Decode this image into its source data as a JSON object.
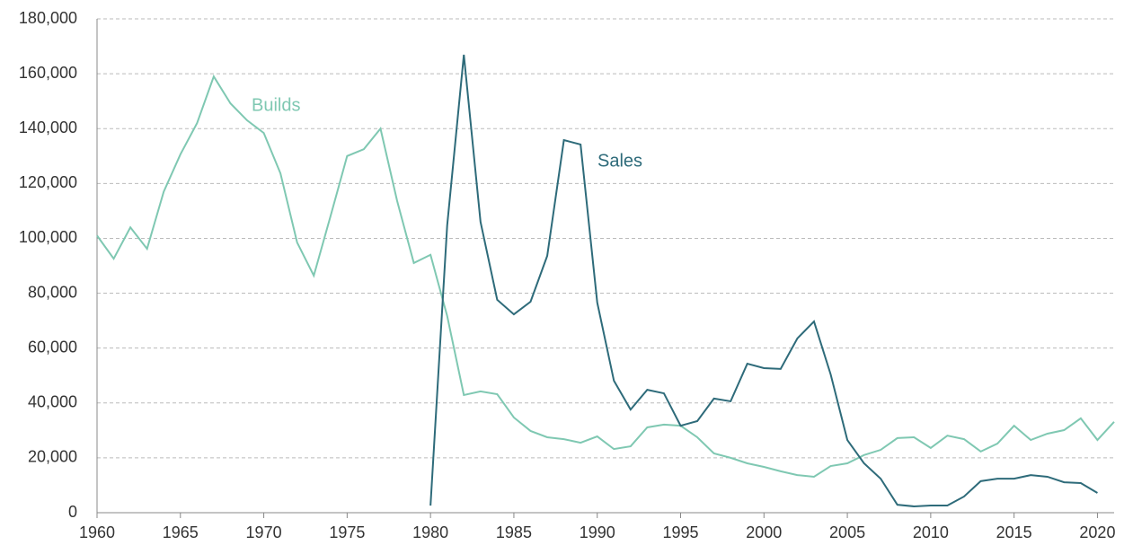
{
  "chart_data": {
    "type": "line",
    "x": [
      1960,
      1961,
      1962,
      1963,
      1964,
      1965,
      1966,
      1967,
      1968,
      1969,
      1970,
      1971,
      1972,
      1973,
      1974,
      1975,
      1976,
      1977,
      1978,
      1979,
      1980,
      1981,
      1982,
      1983,
      1984,
      1985,
      1986,
      1987,
      1988,
      1989,
      1990,
      1991,
      1992,
      1993,
      1994,
      1995,
      1996,
      1997,
      1998,
      1999,
      2000,
      2001,
      2002,
      2003,
      2004,
      2005,
      2006,
      2007,
      2008,
      2009,
      2010,
      2011,
      2012,
      2013,
      2014,
      2015,
      2016,
      2017,
      2018,
      2019,
      2020,
      2021
    ],
    "series": [
      {
        "name": "Builds",
        "color": "#7fc8b2",
        "values": [
          101000,
          92600,
          104000,
          96200,
          117000,
          130600,
          142000,
          159000,
          149200,
          143000,
          138400,
          123700,
          98500,
          86400,
          108000,
          130000,
          132500,
          140000,
          113600,
          91000,
          94000,
          71700,
          42900,
          44200,
          43200,
          34700,
          29800,
          27500,
          26800,
          25500,
          27800,
          23200,
          24200,
          31100,
          32100,
          31700,
          27500,
          21600,
          20000,
          18000,
          16700,
          15100,
          13700,
          13100,
          17000,
          18000,
          21000,
          22900,
          27200,
          27500,
          23600,
          28100,
          26800,
          22300,
          25200,
          31700,
          26500,
          28800,
          30100,
          34400,
          26500,
          33100
        ]
      },
      {
        "name": "Sales",
        "color": "#2e6b7a",
        "values": [
          null,
          null,
          null,
          null,
          null,
          null,
          null,
          null,
          null,
          null,
          null,
          null,
          null,
          null,
          null,
          null,
          null,
          null,
          null,
          null,
          2600,
          104700,
          166900,
          106000,
          77600,
          72300,
          76900,
          93600,
          135800,
          134200,
          76600,
          48100,
          37600,
          44800,
          43500,
          31700,
          33400,
          41600,
          40600,
          54300,
          52700,
          52400,
          63500,
          69700,
          50400,
          26500,
          18000,
          12400,
          2900,
          2300,
          2600,
          2600,
          5900,
          11500,
          12400,
          12400,
          13700,
          13100,
          11100,
          10800,
          7200,
          null
        ]
      }
    ],
    "xlim": [
      1960,
      2021
    ],
    "xticks": [
      1960,
      1965,
      1970,
      1975,
      1980,
      1985,
      1990,
      1995,
      2000,
      2005,
      2010,
      2015,
      2020
    ],
    "ylim": [
      0,
      180000
    ],
    "yticks": [
      0,
      {
        "value": 20000,
        "label": "20,000"
      },
      {
        "value": 40000,
        "label": "40,000"
      },
      {
        "value": 60000,
        "label": "60,000"
      },
      {
        "value": 80000,
        "label": "80,000"
      },
      {
        "value": 100000,
        "label": "100,000"
      },
      {
        "value": 120000,
        "label": "120,000"
      },
      {
        "value": 140000,
        "label": "140,000"
      },
      {
        "value": 160000,
        "label": "160,000"
      },
      {
        "value": 180000,
        "label": "180,000"
      }
    ],
    "grid": true
  }
}
